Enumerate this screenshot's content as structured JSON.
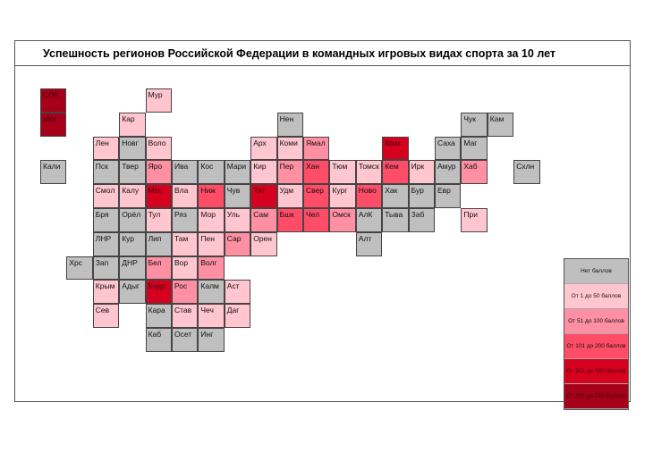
{
  "chart_data": {
    "type": "heatmap",
    "title": "Успешность регионов Российской Федерации в командных игровых видах спорта за 10 лет",
    "legend": [
      {
        "level": 0,
        "label": "Нет баллов",
        "color": "#bfbfbf"
      },
      {
        "level": 1,
        "label": "От 1 до 50 баллов",
        "color": "#ffc6cf"
      },
      {
        "level": 2,
        "label": "От 51 до 100 баллов",
        "color": "#ff8fa2"
      },
      {
        "level": 3,
        "label": "От 101 до 200 баллов",
        "color": "#ff4d68"
      },
      {
        "level": 4,
        "label": "От 201 до 300 баллов",
        "color": "#d6001f"
      },
      {
        "level": 5,
        "label": "От 301 до 500 баллов",
        "color": "#a6001b"
      }
    ],
    "regions": [
      {
        "name": "СПб",
        "row": 0,
        "col": 0,
        "level": 5
      },
      {
        "name": "Мур",
        "row": 0,
        "col": 4,
        "level": 1
      },
      {
        "name": "Мск",
        "row": 1,
        "col": 0,
        "level": 5
      },
      {
        "name": "Кар",
        "row": 1,
        "col": 3,
        "level": 1
      },
      {
        "name": "Нен",
        "row": 1,
        "col": 9,
        "level": 0
      },
      {
        "name": "Чук",
        "row": 1,
        "col": 16,
        "level": 0
      },
      {
        "name": "Кам",
        "row": 1,
        "col": 17,
        "level": 0
      },
      {
        "name": "Лен",
        "row": 2,
        "col": 2,
        "level": 1
      },
      {
        "name": "Новг",
        "row": 2,
        "col": 3,
        "level": 0
      },
      {
        "name": "Воло",
        "row": 2,
        "col": 4,
        "level": 1
      },
      {
        "name": "Арх",
        "row": 2,
        "col": 8,
        "level": 1
      },
      {
        "name": "Коми",
        "row": 2,
        "col": 9,
        "level": 1
      },
      {
        "name": "Ямал",
        "row": 2,
        "col": 10,
        "level": 2
      },
      {
        "name": "Крас",
        "row": 2,
        "col": 13,
        "level": 4
      },
      {
        "name": "Саха",
        "row": 2,
        "col": 15,
        "level": 0
      },
      {
        "name": "Маг",
        "row": 2,
        "col": 16,
        "level": 0
      },
      {
        "name": "Кали",
        "row": 3,
        "col": 0,
        "level": 0
      },
      {
        "name": "Пск",
        "row": 3,
        "col": 2,
        "level": 0
      },
      {
        "name": "Твер",
        "row": 3,
        "col": 3,
        "level": 0
      },
      {
        "name": "Яро",
        "row": 3,
        "col": 4,
        "level": 2
      },
      {
        "name": "Ива",
        "row": 3,
        "col": 5,
        "level": 0
      },
      {
        "name": "Кос",
        "row": 3,
        "col": 6,
        "level": 0
      },
      {
        "name": "Мари",
        "row": 3,
        "col": 7,
        "level": 0
      },
      {
        "name": "Кир",
        "row": 3,
        "col": 8,
        "level": 1
      },
      {
        "name": "Пер",
        "row": 3,
        "col": 9,
        "level": 2
      },
      {
        "name": "Хан",
        "row": 3,
        "col": 10,
        "level": 3
      },
      {
        "name": "Тюм",
        "row": 3,
        "col": 11,
        "level": 1
      },
      {
        "name": "Томск",
        "row": 3,
        "col": 12,
        "level": 1
      },
      {
        "name": "Кем",
        "row": 3,
        "col": 13,
        "level": 3
      },
      {
        "name": "Ирк",
        "row": 3,
        "col": 14,
        "level": 1
      },
      {
        "name": "Амур",
        "row": 3,
        "col": 15,
        "level": 0
      },
      {
        "name": "Хаб",
        "row": 3,
        "col": 16,
        "level": 2
      },
      {
        "name": "Схлн",
        "row": 3,
        "col": 18,
        "level": 0
      },
      {
        "name": "Смол",
        "row": 4,
        "col": 2,
        "level": 1
      },
      {
        "name": "Калу",
        "row": 4,
        "col": 3,
        "level": 1
      },
      {
        "name": "Мос",
        "row": 4,
        "col": 4,
        "level": 4
      },
      {
        "name": "Вла",
        "row": 4,
        "col": 5,
        "level": 1
      },
      {
        "name": "Ниж",
        "row": 4,
        "col": 6,
        "level": 3
      },
      {
        "name": "Чув",
        "row": 4,
        "col": 7,
        "level": 0
      },
      {
        "name": "Тат",
        "row": 4,
        "col": 8,
        "level": 4
      },
      {
        "name": "Удм",
        "row": 4,
        "col": 9,
        "level": 1
      },
      {
        "name": "Свер",
        "row": 4,
        "col": 10,
        "level": 3
      },
      {
        "name": "Кург",
        "row": 4,
        "col": 11,
        "level": 1
      },
      {
        "name": "Ново",
        "row": 4,
        "col": 12,
        "level": 3
      },
      {
        "name": "Хак",
        "row": 4,
        "col": 13,
        "level": 0
      },
      {
        "name": "Бур",
        "row": 4,
        "col": 14,
        "level": 0
      },
      {
        "name": "Евр",
        "row": 4,
        "col": 15,
        "level": 0
      },
      {
        "name": "Бря",
        "row": 5,
        "col": 2,
        "level": 0
      },
      {
        "name": "Орёл",
        "row": 5,
        "col": 3,
        "level": 0
      },
      {
        "name": "Тул",
        "row": 5,
        "col": 4,
        "level": 1
      },
      {
        "name": "Ряз",
        "row": 5,
        "col": 5,
        "level": 0
      },
      {
        "name": "Мор",
        "row": 5,
        "col": 6,
        "level": 1
      },
      {
        "name": "Уль",
        "row": 5,
        "col": 7,
        "level": 1
      },
      {
        "name": "Сам",
        "row": 5,
        "col": 8,
        "level": 2
      },
      {
        "name": "Бшк",
        "row": 5,
        "col": 9,
        "level": 3
      },
      {
        "name": "Чел",
        "row": 5,
        "col": 10,
        "level": 3
      },
      {
        "name": "Омск",
        "row": 5,
        "col": 11,
        "level": 2
      },
      {
        "name": "АлК",
        "row": 5,
        "col": 12,
        "level": 0
      },
      {
        "name": "Тыва",
        "row": 5,
        "col": 13,
        "level": 0
      },
      {
        "name": "Заб",
        "row": 5,
        "col": 14,
        "level": 0
      },
      {
        "name": "При",
        "row": 5,
        "col": 16,
        "level": 1
      },
      {
        "name": "ЛНР",
        "row": 6,
        "col": 2,
        "level": 0
      },
      {
        "name": "Кур",
        "row": 6,
        "col": 3,
        "level": 0
      },
      {
        "name": "Лип",
        "row": 6,
        "col": 4,
        "level": 0
      },
      {
        "name": "Там",
        "row": 6,
        "col": 5,
        "level": 1
      },
      {
        "name": "Пен",
        "row": 6,
        "col": 6,
        "level": 1
      },
      {
        "name": "Сар",
        "row": 6,
        "col": 7,
        "level": 2
      },
      {
        "name": "Орен",
        "row": 6,
        "col": 8,
        "level": 1
      },
      {
        "name": "Алт",
        "row": 6,
        "col": 12,
        "level": 0
      },
      {
        "name": "Хрс",
        "row": 7,
        "col": 1,
        "level": 0
      },
      {
        "name": "Зап",
        "row": 7,
        "col": 2,
        "level": 0
      },
      {
        "name": "ДНР",
        "row": 7,
        "col": 3,
        "level": 0
      },
      {
        "name": "Бел",
        "row": 7,
        "col": 4,
        "level": 2
      },
      {
        "name": "Вор",
        "row": 7,
        "col": 5,
        "level": 1
      },
      {
        "name": "Волг",
        "row": 7,
        "col": 6,
        "level": 2
      },
      {
        "name": "Крым",
        "row": 8,
        "col": 2,
        "level": 1
      },
      {
        "name": "Адыг",
        "row": 8,
        "col": 3,
        "level": 0
      },
      {
        "name": "Кндр",
        "row": 8,
        "col": 4,
        "level": 4
      },
      {
        "name": "Рос",
        "row": 8,
        "col": 5,
        "level": 2
      },
      {
        "name": "Калм",
        "row": 8,
        "col": 6,
        "level": 0
      },
      {
        "name": "Аст",
        "row": 8,
        "col": 7,
        "level": 1
      },
      {
        "name": "Сев",
        "row": 9,
        "col": 2,
        "level": 1
      },
      {
        "name": "Кара",
        "row": 9,
        "col": 4,
        "level": 0
      },
      {
        "name": "Став",
        "row": 9,
        "col": 5,
        "level": 1
      },
      {
        "name": "Чеч",
        "row": 9,
        "col": 6,
        "level": 1
      },
      {
        "name": "Даг",
        "row": 9,
        "col": 7,
        "level": 1
      },
      {
        "name": "Каб",
        "row": 10,
        "col": 4,
        "level": 0
      },
      {
        "name": "Осет",
        "row": 10,
        "col": 5,
        "level": 0
      },
      {
        "name": "Инг",
        "row": 10,
        "col": 6,
        "level": 0
      }
    ]
  }
}
